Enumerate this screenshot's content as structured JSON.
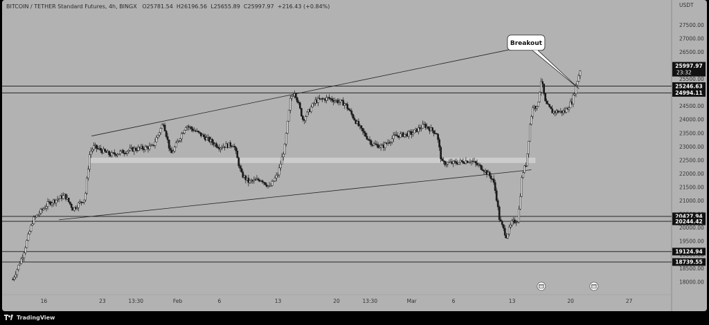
{
  "header": {
    "symbol": "BITCOIN / TETHER Standard Futures, 4h, BINGX",
    "open": "O25781.54",
    "high": "H26196.56",
    "low": "L25655.89",
    "close": "C25997.97",
    "change": "+216.43 (+0.84%)"
  },
  "currency": "USDT",
  "brand": "TradingView",
  "chart_data": {
    "type": "candlestick",
    "y_range": [
      17800,
      28300
    ],
    "y_ticks": [
      18000,
      18500,
      19000,
      19500,
      20000,
      20500,
      21000,
      21500,
      22000,
      22500,
      23000,
      23500,
      24000,
      24500,
      25000,
      25500,
      26000,
      26500,
      27000,
      27500
    ],
    "y_tick_labels": [
      "18000.00",
      "18500.00",
      "19000.00",
      "19500.00",
      "20000.00",
      "20500.00",
      "21000.00",
      "21500.00",
      "22000.00",
      "22500.00",
      "23000.00",
      "23500.00",
      "24000.00",
      "24500.00",
      "25000.00",
      "25500.00",
      "26000.00",
      "26500.00",
      "27000.00",
      "27500.00"
    ],
    "x_ticks": [
      {
        "day": 16,
        "label": "16"
      },
      {
        "day": 23,
        "label": "23"
      },
      {
        "day": 27,
        "label": "13:30"
      },
      {
        "day": 32,
        "label": "Feb"
      },
      {
        "day": 37,
        "label": "6"
      },
      {
        "day": 44,
        "label": "13"
      },
      {
        "day": 51,
        "label": "20"
      },
      {
        "day": 55,
        "label": "13:30"
      },
      {
        "day": 60,
        "label": "Mar"
      },
      {
        "day": 65,
        "label": "6"
      },
      {
        "day": 72,
        "label": "13"
      },
      {
        "day": 79,
        "label": "20"
      },
      {
        "day": 86,
        "label": "27"
      }
    ],
    "price_levels": [
      25246.63,
      24994.11,
      20427.94,
      20244.42,
      19124.94,
      18739.55
    ],
    "price_level_labels": [
      "25246.63",
      "24994.11",
      "20427.94",
      "20244.42",
      "19124.94",
      "18739.55"
    ],
    "last_price": 25997.97,
    "last_price_label": "25997.97",
    "countdown": "23:32",
    "highlight_zone": [
      22400,
      22600
    ],
    "trendlines": [
      {
        "from": [
          21.7,
          23400
        ],
        "to": [
          71.8,
          26600
        ]
      },
      {
        "from": [
          17.8,
          20300
        ],
        "to": [
          74.3,
          22150
        ]
      }
    ],
    "annotation": {
      "text": "Breakout",
      "day": 73.6,
      "price": 26850
    },
    "anchors": [
      {
        "day": 12.3,
        "price": 18100
      },
      {
        "day": 13.5,
        "price": 19000
      },
      {
        "day": 14.7,
        "price": 20300
      },
      {
        "day": 16.5,
        "price": 20900
      },
      {
        "day": 18.5,
        "price": 21200
      },
      {
        "day": 19.5,
        "price": 20700
      },
      {
        "day": 20.9,
        "price": 21100
      },
      {
        "day": 21.5,
        "price": 22800
      },
      {
        "day": 22.0,
        "price": 23000
      },
      {
        "day": 24.0,
        "price": 22700
      },
      {
        "day": 26.5,
        "price": 22900
      },
      {
        "day": 29.0,
        "price": 23000
      },
      {
        "day": 30.3,
        "price": 23900
      },
      {
        "day": 31.2,
        "price": 22700
      },
      {
        "day": 33.0,
        "price": 23800
      },
      {
        "day": 35.0,
        "price": 23400
      },
      {
        "day": 37.0,
        "price": 23000
      },
      {
        "day": 38.7,
        "price": 23100
      },
      {
        "day": 39.6,
        "price": 22000
      },
      {
        "day": 40.5,
        "price": 21700
      },
      {
        "day": 42.0,
        "price": 21800
      },
      {
        "day": 43.0,
        "price": 21500
      },
      {
        "day": 44.0,
        "price": 22000
      },
      {
        "day": 44.8,
        "price": 23000
      },
      {
        "day": 45.5,
        "price": 24800
      },
      {
        "day": 46.0,
        "price": 25050
      },
      {
        "day": 47.0,
        "price": 24000
      },
      {
        "day": 48.5,
        "price": 24700
      },
      {
        "day": 50.0,
        "price": 24800
      },
      {
        "day": 52.0,
        "price": 24600
      },
      {
        "day": 54.0,
        "price": 23600
      },
      {
        "day": 55.3,
        "price": 23100
      },
      {
        "day": 56.5,
        "price": 23000
      },
      {
        "day": 58.0,
        "price": 23400
      },
      {
        "day": 60.0,
        "price": 23500
      },
      {
        "day": 61.5,
        "price": 23800
      },
      {
        "day": 63.0,
        "price": 23500
      },
      {
        "day": 63.6,
        "price": 22400
      },
      {
        "day": 65.0,
        "price": 22400
      },
      {
        "day": 67.0,
        "price": 22500
      },
      {
        "day": 68.5,
        "price": 22200
      },
      {
        "day": 69.7,
        "price": 21800
      },
      {
        "day": 70.1,
        "price": 21200
      },
      {
        "day": 70.5,
        "price": 20300
      },
      {
        "day": 71.3,
        "price": 19700
      },
      {
        "day": 72.0,
        "price": 20200
      },
      {
        "day": 72.7,
        "price": 20300
      },
      {
        "day": 73.2,
        "price": 22000
      },
      {
        "day": 73.7,
        "price": 22400
      },
      {
        "day": 74.2,
        "price": 24000
      },
      {
        "day": 74.6,
        "price": 24600
      },
      {
        "day": 75.0,
        "price": 24400
      },
      {
        "day": 75.5,
        "price": 25500
      },
      {
        "day": 76.0,
        "price": 24600
      },
      {
        "day": 76.8,
        "price": 24300
      },
      {
        "day": 78.3,
        "price": 24300
      },
      {
        "day": 79.2,
        "price": 24700
      },
      {
        "day": 79.6,
        "price": 25200
      },
      {
        "day": 80.1,
        "price": 25800
      },
      {
        "day": 80.3,
        "price": 25998
      }
    ]
  },
  "colors": {
    "background": "#b2b2b2",
    "candle": "#1a1a1a",
    "line": "#111111",
    "zone": "#d2d2d2",
    "label_bg": "#111111",
    "label_text": "#ffffff"
  },
  "icons": [
    "tradingview-logo-icon",
    "calendar-event-icon",
    "calendar-event-icon"
  ]
}
